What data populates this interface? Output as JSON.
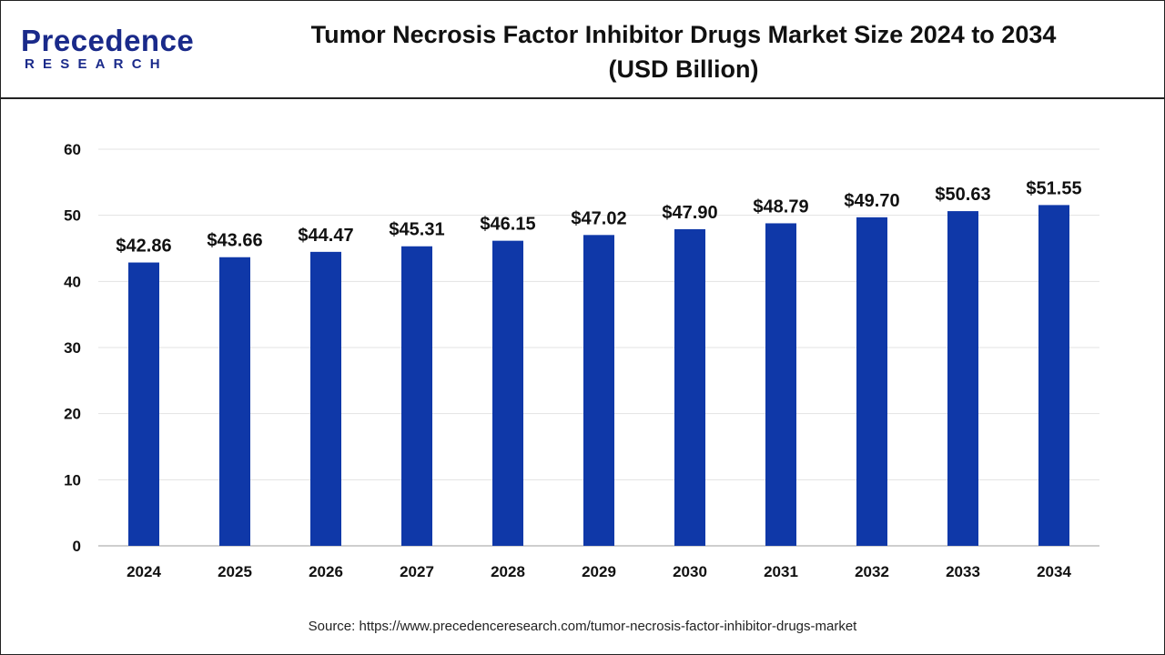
{
  "brand": {
    "name": "Precedence",
    "sub": "RESEARCH",
    "color": "#1a2a8a"
  },
  "header": {
    "title_line1": "Tumor Necrosis Factor Inhibitor Drugs Market Size 2024 to 2034",
    "title_line2": "(USD Billion)"
  },
  "source": "Source: https://www.precedenceresearch.com/tumor-necrosis-factor-inhibitor-drugs-market",
  "chart_data": {
    "type": "bar",
    "title": "Tumor Necrosis Factor Inhibitor Drugs Market Size 2024 to 2034 (USD Billion)",
    "categories": [
      "2024",
      "2025",
      "2026",
      "2027",
      "2028",
      "2029",
      "2030",
      "2031",
      "2032",
      "2033",
      "2034"
    ],
    "values": [
      42.86,
      43.66,
      44.47,
      45.31,
      46.15,
      47.02,
      47.9,
      48.79,
      49.7,
      50.63,
      51.55
    ],
    "value_labels": [
      "$42.86",
      "$43.66",
      "$44.47",
      "$45.31",
      "$46.15",
      "$47.02",
      "$47.90",
      "$48.79",
      "$49.70",
      "$50.63",
      "$51.55"
    ],
    "yticks": [
      0,
      10,
      20,
      30,
      40,
      50,
      60
    ],
    "ylim": [
      0,
      60
    ],
    "xlabel": "",
    "ylabel": "",
    "grid": true,
    "bar_color": "#0f38a8"
  }
}
